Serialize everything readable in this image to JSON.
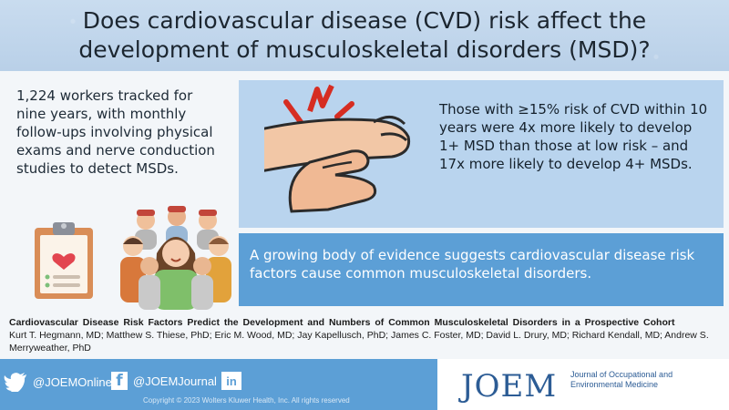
{
  "header": {
    "title": "Does cardiovascular disease (CVD) risk affect the development of musculoskeletal disorders (MSD)?"
  },
  "left_panel": {
    "text": "1,224 workers tracked for nine years, with monthly follow-ups involving physical exams and nerve conduction studies to detect MSDs."
  },
  "stat_panel": {
    "text": "Those with ≥15% risk of CVD within 10 years were 4x more likely to develop 1+ MSD than those at low risk – and 17x more likely to develop 4+ MSDs."
  },
  "evidence_panel": {
    "text": "A growing body of evidence suggests cardiovascular disease risk factors cause common musculoskeletal disorders."
  },
  "citation": {
    "title": "Cardiovascular Disease Risk Factors Predict the Development and Numbers of Common Musculoskeletal Disorders in a Prospective Cohort",
    "authors": "Kurt T. Hegmann, MD; Matthew S. Thiese, PhD; Eric M. Wood, MD; Jay Kapellusch, PhD; James C. Foster, MD; David L. Drury, MD; Richard Kendall, MD; Andrew S. Merryweather, PhD"
  },
  "footer": {
    "twitter_handle": "@JOEMOnline",
    "facebook_handle": "@JOEMJournal",
    "copyright": "Copyright © 2023 Wolters Kluwer Health, Inc. All rights reserved",
    "logo": "JOEM",
    "journal_name": "Journal of Occupational and Environmental Medicine",
    "icons": {
      "twitter": "twitter-icon",
      "facebook": "facebook-icon",
      "linkedin": "linkedin-icon"
    }
  },
  "colors": {
    "title_band": "#b9d0e8",
    "stat_box": "#b9d4ee",
    "evidence_box": "#5c9fd6",
    "footer_left": "#5c9fd6",
    "logo": "#2c5c95",
    "pain_accent": "#d62d22",
    "skin": "#f2c7a6"
  }
}
